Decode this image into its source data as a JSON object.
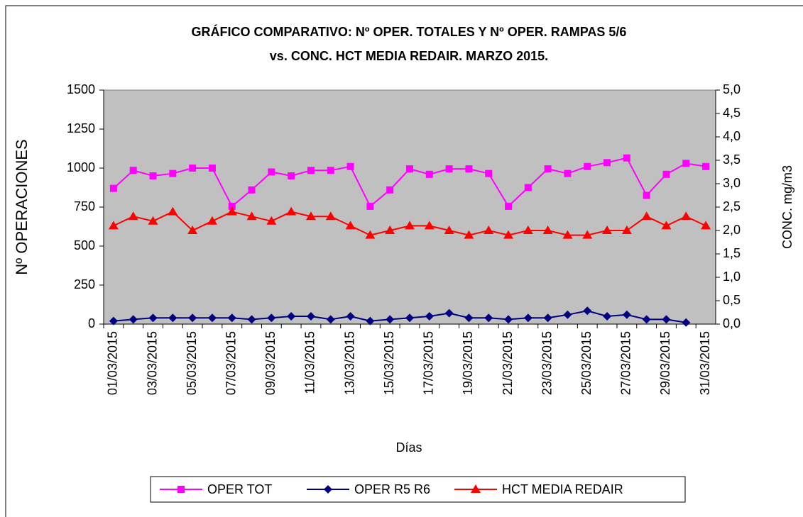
{
  "chart_data": {
    "type": "line",
    "title": [
      "GRÁFICO COMPARATIVO: Nº OPER. TOTALES Y Nº OPER. RAMPAS 5/6",
      "vs. CONC. HCT MEDIA REDAIR. MARZO 2015."
    ],
    "x_label": "Días",
    "y_label": "Nº OPERACIONES",
    "y2_label": "CONC. mg/m3",
    "categories": [
      "01/03/2015",
      null,
      "03/03/2015",
      null,
      "05/03/2015",
      null,
      "07/03/2015",
      null,
      "09/03/2015",
      null,
      "11/03/2015",
      null,
      "13/03/2015",
      null,
      "15/03/2015",
      null,
      "17/03/2015",
      null,
      "19/03/2015",
      null,
      "21/03/2015",
      null,
      "23/03/2015",
      null,
      "25/03/2015",
      null,
      "27/03/2015",
      null,
      "29/03/2015",
      null,
      "31/03/2015"
    ],
    "ylim": [
      0,
      1500
    ],
    "yticks": [
      0,
      250,
      500,
      750,
      1000,
      1250,
      1500
    ],
    "y2lim": [
      0,
      5
    ],
    "y2ticks": [
      {
        "value": 0,
        "label": "0,0"
      },
      {
        "value": 0.5,
        "label": "0,5"
      },
      {
        "value": 1,
        "label": "1,0"
      },
      {
        "value": 1.5,
        "label": "1,5"
      },
      {
        "value": 2,
        "label": "2,0"
      },
      {
        "value": 2.5,
        "label": "2,5"
      },
      {
        "value": 3,
        "label": "3,0"
      },
      {
        "value": 3.5,
        "label": "3,5"
      },
      {
        "value": 4,
        "label": "4,0"
      },
      {
        "value": 4.5,
        "label": "4,5"
      },
      {
        "value": 5,
        "label": "5,0"
      }
    ],
    "plot_background": "#c0c0c0",
    "series": [
      {
        "name": "OPER TOT",
        "color": "#ff00ff",
        "marker": "square",
        "values": [
          870,
          985,
          950,
          965,
          1000,
          1000,
          755,
          860,
          975,
          950,
          985,
          985,
          1010,
          755,
          860,
          995,
          960,
          995,
          995,
          965,
          755,
          875,
          995,
          965,
          1010,
          1035,
          1065,
          825,
          960,
          1030,
          1010
        ]
      },
      {
        "name": "OPER R5 R6",
        "color": "#000080",
        "marker": "diamond",
        "values": [
          20,
          30,
          40,
          40,
          40,
          40,
          40,
          30,
          40,
          50,
          50,
          30,
          50,
          20,
          30,
          40,
          50,
          70,
          40,
          40,
          30,
          40,
          40,
          60,
          85,
          50,
          60,
          30,
          30,
          10,
          null
        ]
      },
      {
        "name": "HCT MEDIA REDAIR",
        "color": "#ff0000",
        "marker": "triangle",
        "axis": "y2",
        "values": [
          2.1,
          2.3,
          2.2,
          2.4,
          2.0,
          2.2,
          2.4,
          2.3,
          2.2,
          2.4,
          2.3,
          2.3,
          2.1,
          1.9,
          2.0,
          2.1,
          2.1,
          2.0,
          1.9,
          2.0,
          1.9,
          2.0,
          2.0,
          1.9,
          1.9,
          2.0,
          2.0,
          2.3,
          2.1,
          2.3,
          2.1
        ]
      }
    ]
  }
}
